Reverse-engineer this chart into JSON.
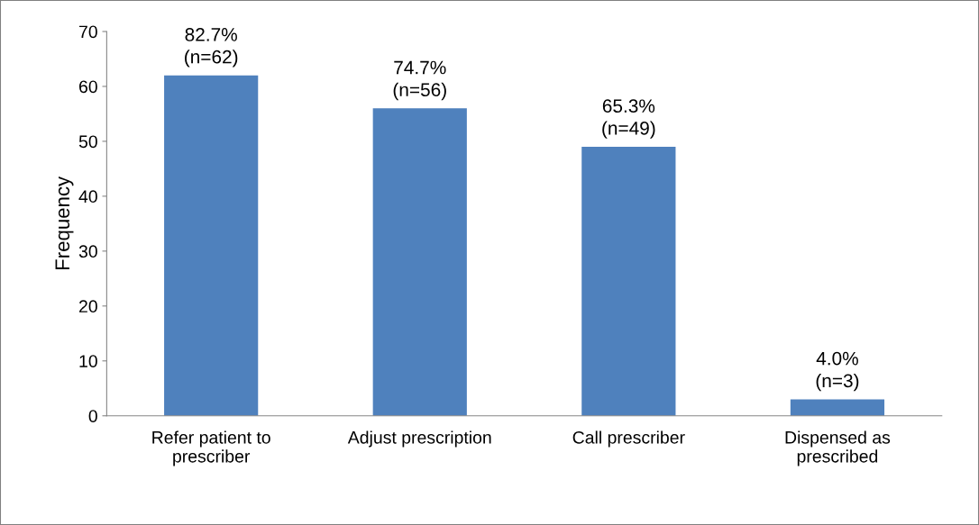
{
  "chart_data": {
    "type": "bar",
    "ylabel": "Frequency",
    "categories": [
      "Refer patient to\nprescriber",
      "Adjust prescription",
      "Call prescriber",
      "Dispensed as\nprescribed"
    ],
    "values": [
      62,
      56,
      49,
      3
    ],
    "value_labels": [
      "82.7%\n(n=62)",
      "74.7%\n(n=56)",
      "65.3%\n(n=49)",
      "4.0%\n(n=3)"
    ],
    "color": "#4f81bd",
    "ylim": [
      0,
      70
    ],
    "yticks": [
      0,
      10,
      20,
      30,
      40,
      50,
      60,
      70
    ],
    "grid": false,
    "legend": false
  }
}
